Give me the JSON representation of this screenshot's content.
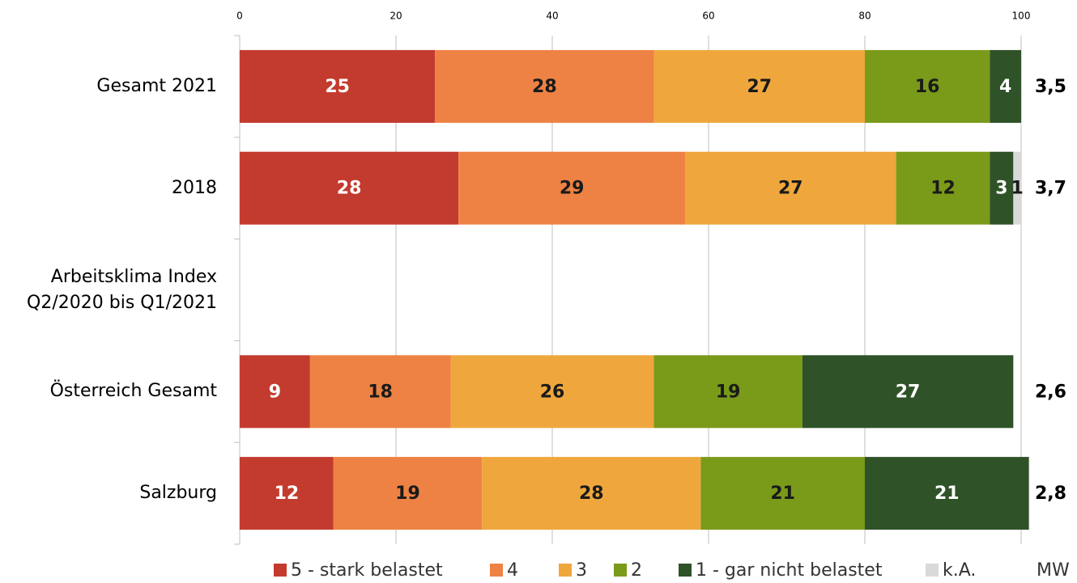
{
  "chart_data": {
    "type": "stacked_bar_horizontal",
    "categories": [
      "Gesamt 2021",
      "2018",
      "Arbeitsklima Index Q2/2020 bis Q1/2021",
      "Österreich Gesamt",
      "Salzburg"
    ],
    "series": [
      {
        "name": "5 - stark belastet",
        "color": "#c33b2e",
        "values": [
          25,
          28,
          null,
          9,
          12
        ]
      },
      {
        "name": "4",
        "color": "#ee8244",
        "values": [
          28,
          29,
          null,
          18,
          19
        ]
      },
      {
        "name": "3",
        "color": "#efa73d",
        "values": [
          27,
          27,
          null,
          26,
          28
        ]
      },
      {
        "name": "2",
        "color": "#7a9a1a",
        "values": [
          16,
          12,
          null,
          19,
          21
        ]
      },
      {
        "name": "1 - gar nicht belastet",
        "color": "#2f5228",
        "values": [
          4,
          3,
          null,
          27,
          21
        ]
      },
      {
        "name": "k.A.",
        "color": "#d9d9d9",
        "values": [
          null,
          1,
          null,
          null,
          null
        ]
      }
    ],
    "mw": {
      "name": "MW",
      "values": [
        "3,5",
        "3,7",
        null,
        "2,6",
        "2,8"
      ]
    },
    "xlim": [
      0,
      100
    ],
    "xticks": [
      0,
      20,
      40,
      60,
      80,
      100
    ],
    "grid": true,
    "legend": "bottom"
  }
}
